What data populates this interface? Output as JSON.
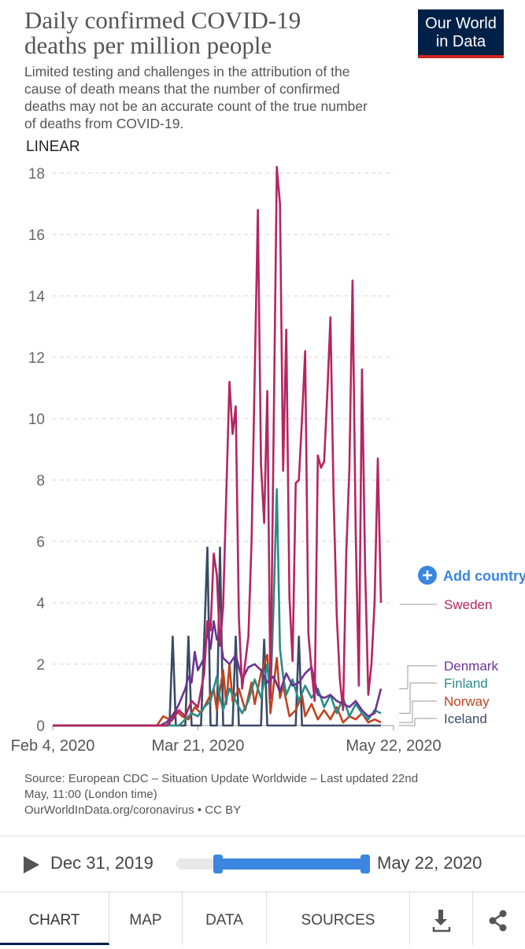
{
  "header": {
    "title_line1": "Daily confirmed COVID-19",
    "title_line2": "deaths per million people",
    "subtitle": "Limited testing and challenges in the attribution of the cause of death means that the number of confirmed deaths may not be an accurate count of the true number of deaths from COVID-19.",
    "logo_line1": "Our World",
    "logo_line2": "in Data",
    "scale_label": "LINEAR"
  },
  "chart_data": {
    "type": "line",
    "title": "Daily confirmed COVID-19 deaths per million people",
    "xlabel": "",
    "ylabel": "",
    "ylim": [
      0,
      18
    ],
    "yticks": [
      0,
      2,
      4,
      6,
      8,
      10,
      12,
      14,
      16,
      18
    ],
    "x_tick_labels": [
      "Feb 4, 2020",
      "Mar 21, 2020",
      "May 22, 2020"
    ],
    "x_domain_days": [
      0,
      108
    ],
    "x_tick_days": [
      0,
      46,
      108
    ],
    "add_country_label": "Add country",
    "series": [
      {
        "name": "Sweden",
        "color": "#b52561",
        "points": [
          [
            0,
            0
          ],
          [
            33,
            0
          ],
          [
            36,
            0
          ],
          [
            38,
            0.2
          ],
          [
            40,
            0.5
          ],
          [
            42,
            0.3
          ],
          [
            44,
            0.8
          ],
          [
            46,
            0.6
          ],
          [
            48,
            1.7
          ],
          [
            49,
            3.4
          ],
          [
            50,
            3.1
          ],
          [
            51,
            5.6
          ],
          [
            52,
            4.9
          ],
          [
            53,
            2.6
          ],
          [
            54,
            3.9
          ],
          [
            56,
            11.2
          ],
          [
            57,
            9.5
          ],
          [
            58,
            10.4
          ],
          [
            59,
            3.5
          ],
          [
            60,
            1.2
          ],
          [
            62,
            2.9
          ],
          [
            63,
            6.0
          ],
          [
            65,
            16.8
          ],
          [
            66,
            8.5
          ],
          [
            67,
            6.6
          ],
          [
            68,
            10.9
          ],
          [
            69,
            0.9
          ],
          [
            71,
            18.2
          ],
          [
            72,
            17.0
          ],
          [
            73,
            8.3
          ],
          [
            74,
            12.9
          ],
          [
            75,
            4.2
          ],
          [
            76,
            2.1
          ],
          [
            77,
            7.9
          ],
          [
            78,
            8.0
          ],
          [
            79,
            10.0
          ],
          [
            80,
            12.2
          ],
          [
            81,
            3.0
          ],
          [
            82,
            1.8
          ],
          [
            83,
            0.8
          ],
          [
            84,
            8.8
          ],
          [
            85,
            8.4
          ],
          [
            86,
            8.6
          ],
          [
            87,
            10.8
          ],
          [
            88,
            13.3
          ],
          [
            89,
            7.5
          ],
          [
            90,
            3.6
          ],
          [
            91,
            1.5
          ],
          [
            92,
            0.5
          ],
          [
            93,
            5.6
          ],
          [
            94,
            8.4
          ],
          [
            95,
            14.5
          ],
          [
            96,
            6.3
          ],
          [
            97,
            1.3
          ],
          [
            98,
            11.6
          ],
          [
            99,
            5.1
          ],
          [
            100,
            1.0
          ],
          [
            101,
            2.0
          ],
          [
            102,
            4.0
          ],
          [
            103,
            8.7
          ],
          [
            104,
            4.0
          ]
        ]
      },
      {
        "name": "Denmark",
        "color": "#6b3394",
        "points": [
          [
            0,
            0
          ],
          [
            34,
            0
          ],
          [
            36,
            0.1
          ],
          [
            38,
            0.3
          ],
          [
            40,
            0.7
          ],
          [
            42,
            1.2
          ],
          [
            43,
            1.6
          ],
          [
            44,
            1.4
          ],
          [
            45,
            2.4
          ],
          [
            46,
            1.8
          ],
          [
            48,
            2.2
          ],
          [
            49,
            3.1
          ],
          [
            50,
            2.5
          ],
          [
            51,
            3.4
          ],
          [
            52,
            2.8
          ],
          [
            53,
            3.0
          ],
          [
            54,
            2.2
          ],
          [
            56,
            2.0
          ],
          [
            58,
            2.3
          ],
          [
            60,
            1.5
          ],
          [
            62,
            1.9
          ],
          [
            64,
            2.0
          ],
          [
            66,
            1.8
          ],
          [
            68,
            1.4
          ],
          [
            70,
            1.6
          ],
          [
            72,
            1.1
          ],
          [
            74,
            1.7
          ],
          [
            76,
            1.3
          ],
          [
            78,
            1.4
          ],
          [
            80,
            1.7
          ],
          [
            82,
            1.9
          ],
          [
            84,
            1.0
          ],
          [
            86,
            0.9
          ],
          [
            88,
            1.0
          ],
          [
            90,
            0.8
          ],
          [
            92,
            0.7
          ],
          [
            94,
            0.6
          ],
          [
            96,
            0.8
          ],
          [
            98,
            0.5
          ],
          [
            100,
            0.3
          ],
          [
            102,
            0.4
          ],
          [
            104,
            1.2
          ]
        ]
      },
      {
        "name": "Finland",
        "color": "#2a8c86",
        "points": [
          [
            0,
            0
          ],
          [
            40,
            0
          ],
          [
            42,
            0.2
          ],
          [
            44,
            0.4
          ],
          [
            46,
            0.3
          ],
          [
            48,
            0.6
          ],
          [
            50,
            0.8
          ],
          [
            52,
            1.6
          ],
          [
            53,
            0.9
          ],
          [
            54,
            0.5
          ],
          [
            56,
            1.2
          ],
          [
            58,
            0.8
          ],
          [
            60,
            0.4
          ],
          [
            62,
            0.8
          ],
          [
            64,
            1.5
          ],
          [
            66,
            0.9
          ],
          [
            68,
            2.0
          ],
          [
            69,
            1.0
          ],
          [
            70,
            3.9
          ],
          [
            71,
            7.7
          ],
          [
            72,
            2.5
          ],
          [
            73,
            1.6
          ],
          [
            74,
            1.0
          ],
          [
            76,
            1.5
          ],
          [
            78,
            0.8
          ],
          [
            80,
            1.3
          ],
          [
            82,
            0.9
          ],
          [
            84,
            1.2
          ],
          [
            86,
            0.6
          ],
          [
            88,
            1.0
          ],
          [
            90,
            0.4
          ],
          [
            92,
            0.9
          ],
          [
            94,
            0.3
          ],
          [
            96,
            0.7
          ],
          [
            98,
            0.4
          ],
          [
            100,
            0.2
          ],
          [
            102,
            0.5
          ],
          [
            104,
            0.4
          ]
        ]
      },
      {
        "name": "Norway",
        "color": "#c1431f",
        "points": [
          [
            0,
            0
          ],
          [
            33,
            0
          ],
          [
            35,
            0.3
          ],
          [
            37,
            0.2
          ],
          [
            39,
            0.5
          ],
          [
            41,
            0.3
          ],
          [
            43,
            0.2
          ],
          [
            45,
            0.6
          ],
          [
            47,
            0.4
          ],
          [
            49,
            0.8
          ],
          [
            51,
            1.2
          ],
          [
            52,
            0.5
          ],
          [
            54,
            1.8
          ],
          [
            55,
            0.7
          ],
          [
            56,
            2.0
          ],
          [
            57,
            0.8
          ],
          [
            59,
            1.2
          ],
          [
            61,
            0.5
          ],
          [
            63,
            1.4
          ],
          [
            64,
            0.7
          ],
          [
            66,
            1.7
          ],
          [
            68,
            2.3
          ],
          [
            69,
            0.4
          ],
          [
            71,
            2.2
          ],
          [
            72,
            0.9
          ],
          [
            73,
            1.3
          ],
          [
            75,
            0.3
          ],
          [
            77,
            0.5
          ],
          [
            79,
            1.0
          ],
          [
            80,
            0.3
          ],
          [
            82,
            0.7
          ],
          [
            84,
            0.2
          ],
          [
            86,
            0.5
          ],
          [
            88,
            0.2
          ],
          [
            90,
            0.6
          ],
          [
            92,
            0.1
          ],
          [
            94,
            0.3
          ],
          [
            96,
            0.2
          ],
          [
            98,
            0.4
          ],
          [
            100,
            0.1
          ],
          [
            102,
            0.2
          ],
          [
            104,
            0.1
          ]
        ]
      },
      {
        "name": "Iceland",
        "color": "#3b4a66",
        "points": [
          [
            0,
            0
          ],
          [
            37,
            0
          ],
          [
            38,
            2.9
          ],
          [
            39,
            0
          ],
          [
            42,
            0
          ],
          [
            43,
            2.9
          ],
          [
            44,
            0
          ],
          [
            47,
            0
          ],
          [
            48,
            2.8
          ],
          [
            49,
            5.8
          ],
          [
            50,
            0
          ],
          [
            52,
            0
          ],
          [
            53,
            5.8
          ],
          [
            54,
            0
          ],
          [
            57,
            0
          ],
          [
            58,
            2.9
          ],
          [
            59,
            0
          ],
          [
            66,
            0
          ],
          [
            67,
            2.8
          ],
          [
            68,
            0
          ],
          [
            77,
            0
          ],
          [
            78,
            2.9
          ],
          [
            79,
            0
          ],
          [
            104,
            0
          ]
        ]
      }
    ]
  },
  "source": {
    "line1": "Source: European CDC – Situation Update Worldwide – Last updated 22nd",
    "line2": "May, 11:00 (London time)",
    "line3": "OurWorldInData.org/coronavirus • CC BY"
  },
  "timeline": {
    "start_label": "Dec 31, 2019",
    "end_label": "May 22, 2020",
    "range_start_fraction": 0.22,
    "range_end_fraction": 1.0
  },
  "tabs": [
    {
      "label": "CHART",
      "active": true
    },
    {
      "label": "MAP",
      "active": false
    },
    {
      "label": "DATA",
      "active": false
    },
    {
      "label": "SOURCES",
      "active": false
    }
  ],
  "icons": {
    "download": "download-icon",
    "share": "share-icon",
    "play": "play-icon",
    "add": "plus-circle-icon"
  },
  "colors": {
    "brand_bg": "#002147",
    "brand_accent": "#ce261e",
    "slider": "#3a86e0"
  }
}
